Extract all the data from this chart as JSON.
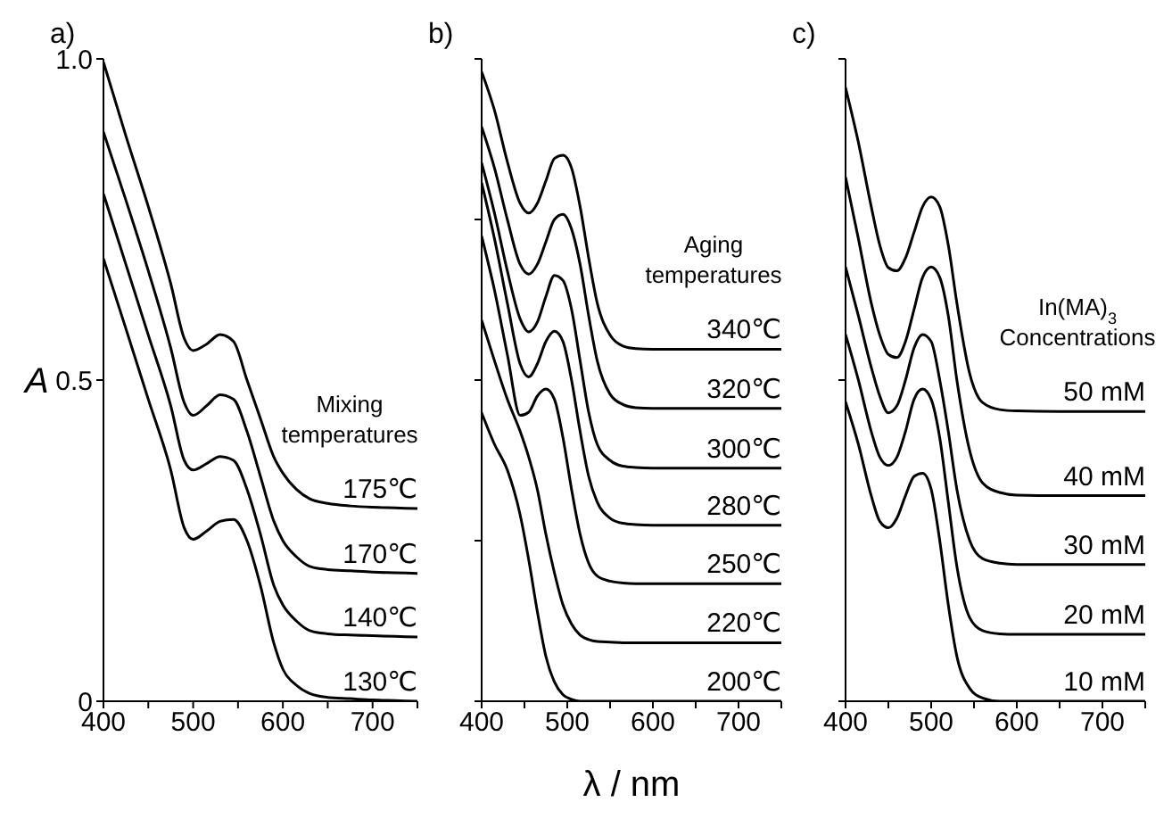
{
  "chart_data": [
    {
      "type": "line",
      "title": "a)",
      "ylabel": "A",
      "legend_title": "Mixing temperatures",
      "x": [
        400,
        425,
        450,
        475,
        490,
        500,
        515,
        530,
        545,
        560,
        575,
        590,
        600,
        615,
        630,
        650,
        675,
        700,
        725,
        750
      ],
      "series": [
        {
          "name": "175℃",
          "color": "#000000",
          "values": [
            0.995,
            0.88,
            0.77,
            0.65,
            0.565,
            0.546,
            0.556,
            0.571,
            0.56,
            0.5,
            0.44,
            0.38,
            0.355,
            0.33,
            0.315,
            0.308,
            0.304,
            0.302,
            0.301,
            0.3
          ]
        },
        {
          "name": "170℃",
          "color": "#000000",
          "values": [
            0.886,
            0.78,
            0.67,
            0.55,
            0.465,
            0.445,
            0.46,
            0.477,
            0.47,
            0.42,
            0.35,
            0.28,
            0.25,
            0.225,
            0.21,
            0.205,
            0.203,
            0.201,
            0.2,
            0.199
          ]
        },
        {
          "name": "140℃",
          "color": "#000000",
          "values": [
            0.79,
            0.68,
            0.57,
            0.46,
            0.375,
            0.36,
            0.37,
            0.381,
            0.375,
            0.33,
            0.26,
            0.18,
            0.15,
            0.125,
            0.11,
            0.105,
            0.103,
            0.102,
            0.101,
            0.1
          ]
        },
        {
          "name": "130℃",
          "color": "#000000",
          "values": [
            0.689,
            0.58,
            0.47,
            0.36,
            0.27,
            0.252,
            0.265,
            0.28,
            0.283,
            0.25,
            0.18,
            0.09,
            0.05,
            0.025,
            0.012,
            0.006,
            0.004,
            0.002,
            0.001,
            0
          ]
        }
      ],
      "xlim": [
        400,
        750
      ],
      "xticks": [
        400,
        {
          "value": 450,
          "label": null
        },
        500,
        {
          "value": 550,
          "label": null
        },
        600,
        {
          "value": 650,
          "label": null
        },
        700,
        {
          "value": 750,
          "label": null
        }
      ],
      "ylim": [
        0,
        1
      ],
      "yticks": [
        0,
        0.5,
        {
          "value": 1,
          "label": "1.0"
        }
      ],
      "marker": "none"
    },
    {
      "type": "line",
      "title": "b)",
      "xlabel": "λ / nm",
      "legend_title": "Aging temperatures",
      "x": [
        400,
        415,
        430,
        445,
        455,
        465,
        475,
        485,
        495,
        505,
        515,
        525,
        535,
        550,
        565,
        580,
        600,
        650,
        700,
        750
      ],
      "series": [
        {
          "name": "340℃",
          "color": "#000000",
          "values": [
            0.98,
            0.92,
            0.84,
            0.775,
            0.76,
            0.775,
            0.81,
            0.845,
            0.85,
            0.83,
            0.77,
            0.69,
            0.62,
            0.57,
            0.553,
            0.549,
            0.548,
            0.548,
            0.548,
            0.548
          ]
        },
        {
          "name": "320℃",
          "color": "#000000",
          "values": [
            0.894,
            0.83,
            0.75,
            0.68,
            0.665,
            0.68,
            0.715,
            0.75,
            0.758,
            0.735,
            0.68,
            0.6,
            0.53,
            0.478,
            0.462,
            0.457,
            0.456,
            0.456,
            0.456,
            0.456
          ]
        },
        {
          "name": "300℃",
          "color": "#000000",
          "values": [
            0.838,
            0.76,
            0.67,
            0.595,
            0.575,
            0.59,
            0.63,
            0.663,
            0.655,
            0.61,
            0.53,
            0.45,
            0.4,
            0.375,
            0.366,
            0.364,
            0.363,
            0.363,
            0.363,
            0.363
          ]
        },
        {
          "name": "280℃",
          "color": "#000000",
          "values": [
            0.807,
            0.72,
            0.62,
            0.525,
            0.505,
            0.525,
            0.56,
            0.576,
            0.56,
            0.5,
            0.42,
            0.35,
            0.31,
            0.285,
            0.277,
            0.275,
            0.274,
            0.274,
            0.274,
            0.274
          ]
        },
        {
          "name": "250℃",
          "color": "#000000",
          "values": [
            0.724,
            0.64,
            0.54,
            0.445,
            0.45,
            0.475,
            0.486,
            0.47,
            0.41,
            0.33,
            0.26,
            0.215,
            0.195,
            0.187,
            0.184,
            0.183,
            0.183,
            0.183,
            0.183,
            0.183
          ]
        },
        {
          "name": "220℃",
          "color": "#000000",
          "values": [
            0.593,
            0.53,
            0.47,
            0.42,
            0.38,
            0.33,
            0.26,
            0.2,
            0.15,
            0.12,
            0.103,
            0.096,
            0.093,
            0.092,
            0.091,
            0.091,
            0.091,
            0.091,
            0.091,
            0.091
          ]
        },
        {
          "name": "200℃",
          "color": "#000000",
          "values": [
            0.449,
            0.4,
            0.36,
            0.29,
            0.22,
            0.14,
            0.07,
            0.03,
            0.01,
            0.003,
            0,
            0,
            0,
            0,
            0,
            0,
            0,
            0,
            0,
            0
          ]
        }
      ],
      "xlim": [
        400,
        750
      ],
      "xticks": [
        400,
        {
          "value": 450,
          "label": null
        },
        500,
        {
          "value": 550,
          "label": null
        },
        600,
        {
          "value": 650,
          "label": null
        },
        700,
        {
          "value": 750,
          "label": null
        }
      ],
      "ylim": [
        0,
        1
      ],
      "yticks": [
        {
          "value": 0,
          "label": null
        },
        {
          "value": 0.25,
          "label": null
        },
        {
          "value": 0.5,
          "label": null
        },
        {
          "value": 0.75,
          "label": null
        },
        {
          "value": 1,
          "label": null
        }
      ],
      "tick_labels": "x",
      "marker": "none"
    },
    {
      "type": "line",
      "title": "c)",
      "legend_title": "In(MA)$_{3}$ Concentrations",
      "x": [
        400,
        415,
        430,
        440,
        450,
        460,
        470,
        480,
        490,
        500,
        510,
        520,
        530,
        545,
        560,
        580,
        600,
        650,
        700,
        750
      ],
      "series": [
        {
          "name": "50 mM",
          "color": "#000000",
          "values": [
            0.955,
            0.87,
            0.77,
            0.71,
            0.675,
            0.67,
            0.69,
            0.73,
            0.77,
            0.785,
            0.77,
            0.71,
            0.62,
            0.51,
            0.465,
            0.454,
            0.452,
            0.451,
            0.451,
            0.451
          ]
        },
        {
          "name": "40 mM",
          "color": "#000000",
          "values": [
            0.816,
            0.72,
            0.62,
            0.57,
            0.54,
            0.535,
            0.56,
            0.61,
            0.66,
            0.676,
            0.66,
            0.6,
            0.5,
            0.39,
            0.34,
            0.325,
            0.321,
            0.32,
            0.32,
            0.32
          ]
        },
        {
          "name": "30 mM",
          "color": "#000000",
          "values": [
            0.676,
            0.6,
            0.52,
            0.475,
            0.449,
            0.46,
            0.5,
            0.55,
            0.571,
            0.56,
            0.5,
            0.42,
            0.33,
            0.25,
            0.222,
            0.215,
            0.213,
            0.213,
            0.213,
            0.213
          ]
        },
        {
          "name": "20 mM",
          "color": "#000000",
          "values": [
            0.571,
            0.5,
            0.42,
            0.38,
            0.367,
            0.38,
            0.42,
            0.47,
            0.486,
            0.47,
            0.41,
            0.31,
            0.21,
            0.13,
            0.11,
            0.105,
            0.104,
            0.104,
            0.104,
            0.104
          ]
        },
        {
          "name": "10 mM",
          "color": "#000000",
          "values": [
            0.466,
            0.4,
            0.32,
            0.28,
            0.27,
            0.285,
            0.32,
            0.35,
            0.355,
            0.33,
            0.25,
            0.15,
            0.07,
            0.02,
            0.005,
            0,
            0,
            0,
            0,
            0
          ]
        }
      ],
      "xlim": [
        400,
        750
      ],
      "xticks": [
        400,
        {
          "value": 450,
          "label": null
        },
        500,
        {
          "value": 550,
          "label": null
        },
        600,
        {
          "value": 650,
          "label": null
        },
        700,
        {
          "value": 750,
          "label": null
        }
      ],
      "ylim": [
        0,
        1
      ],
      "yticks": [
        {
          "value": 0,
          "label": null
        },
        {
          "value": 0.5,
          "label": null
        },
        {
          "value": 1,
          "label": null
        }
      ],
      "tick_labels": "x",
      "marker": "none"
    }
  ]
}
